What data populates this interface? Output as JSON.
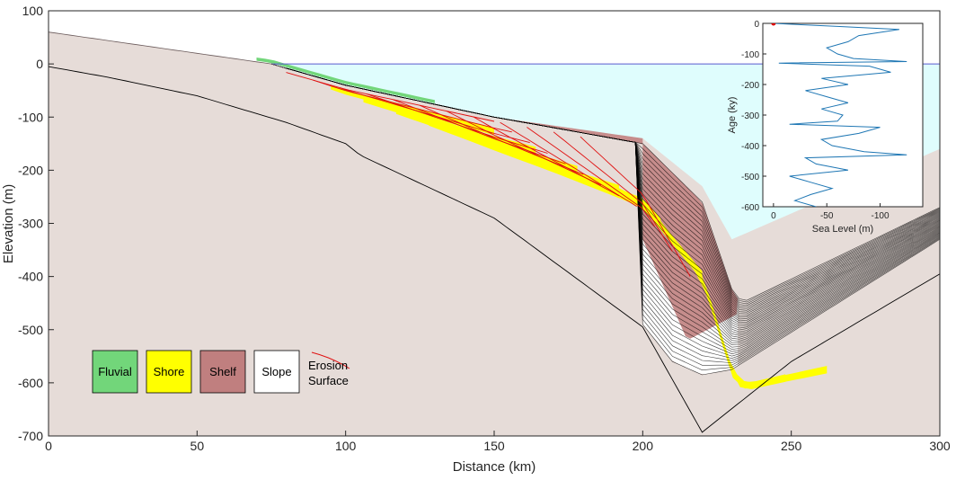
{
  "chart_data": [
    {
      "type": "area",
      "xlabel": "Distance (km)",
      "ylabel": "Elevation (m)",
      "xlim": [
        0,
        300
      ],
      "ylim": [
        -700,
        100
      ],
      "xticks": [
        0,
        50,
        100,
        150,
        200,
        250,
        300
      ],
      "yticks": [
        100,
        0,
        -100,
        -200,
        -300,
        -400,
        -500,
        -600,
        -700
      ],
      "sea_level": 0,
      "colors": {
        "basement": "#e6dcd8",
        "sea": "#dffdfd",
        "sea_line": "#5a5acf",
        "fluvial": "#72d67a",
        "shore": "#ffff00",
        "shelf": "#c07f7f",
        "slope": "#ffffff",
        "erosion": "#e01010"
      },
      "legend": [
        {
          "key": "fluvial",
          "label": "Fluvial"
        },
        {
          "key": "shore",
          "label": "Shore"
        },
        {
          "key": "shelf",
          "label": "Shelf"
        },
        {
          "key": "slope",
          "label": "Slope"
        },
        {
          "key": "erosion",
          "label_line1": "Erosion",
          "label_line2": "Surface"
        }
      ],
      "legend_position": "bottom-left",
      "basement_surface": {
        "x": [
          0,
          50,
          75,
          100,
          150,
          200,
          220,
          230,
          300
        ],
        "y": [
          60,
          20,
          0,
          -40,
          -100,
          -140,
          -230,
          -330,
          -160
        ]
      },
      "initial_basement": {
        "x": [
          0,
          20,
          50,
          80,
          100,
          105,
          150,
          200,
          220,
          250,
          300
        ],
        "y": [
          -5,
          -25,
          -60,
          -110,
          -150,
          -172,
          -290,
          -495,
          -693,
          -560,
          -395
        ]
      },
      "final_surface": {
        "x": [
          75,
          100,
          150,
          200,
          220,
          231,
          235,
          300
        ],
        "y": [
          0,
          -40,
          -100,
          -150,
          -260,
          -440,
          -445,
          -270
        ]
      },
      "deepest_surface": {
        "x": [
          200,
          210,
          220,
          230,
          300
        ],
        "y": [
          -490,
          -560,
          -585,
          -575,
          -330
        ]
      }
    },
    {
      "type": "line",
      "xlabel": "Sea Level (m)",
      "ylabel": "Age (ky)",
      "xlim": [
        10,
        -140
      ],
      "ylim": [
        0,
        -600
      ],
      "xticks": [
        0,
        -50,
        -100
      ],
      "yticks": [
        0,
        -100,
        -200,
        -300,
        -400,
        -500,
        -600
      ],
      "line_color": "#1f77b4",
      "marker_color": "#dd0000",
      "marker": {
        "x": 0,
        "y": 0
      },
      "series": {
        "age": [
          0,
          -10,
          -20,
          -40,
          -60,
          -80,
          -100,
          -115,
          -125,
          -130,
          -140,
          -160,
          -180,
          -200,
          -220,
          -240,
          -260,
          -280,
          -300,
          -320,
          -330,
          -340,
          -360,
          -380,
          -400,
          -420,
          -430,
          -440,
          -460,
          -480,
          -500,
          -520,
          -540,
          -560,
          -580,
          -600
        ],
        "sea_level": [
          0,
          -60,
          -118,
          -80,
          -70,
          -50,
          -60,
          -75,
          -125,
          -5,
          -90,
          -110,
          -45,
          -70,
          -30,
          -50,
          -70,
          -45,
          -65,
          -60,
          -15,
          -100,
          -80,
          -45,
          -55,
          -85,
          -125,
          -30,
          -40,
          -70,
          -15,
          -35,
          -55,
          -35,
          -20,
          -40
        ]
      }
    }
  ]
}
